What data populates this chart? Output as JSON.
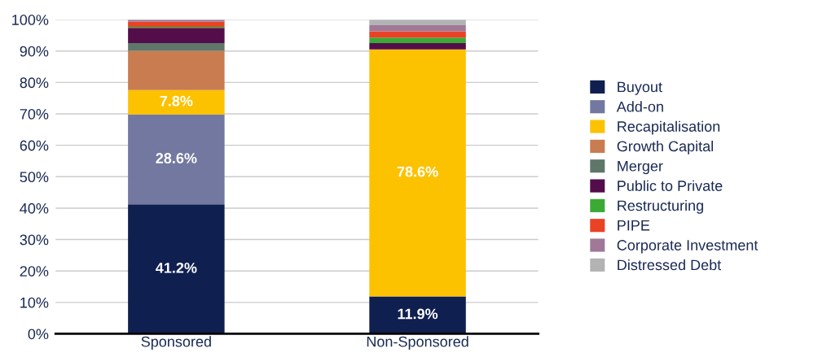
{
  "chart_data": {
    "type": "bar",
    "stacked": true,
    "categories": [
      "Sponsored",
      "Non-Sponsored"
    ],
    "series": [
      {
        "name": "Buyout",
        "color": "#0f1f4f",
        "values": [
          41.2,
          11.9
        ],
        "value_labels": [
          "41.2%",
          "11.9%"
        ]
      },
      {
        "name": "Add-on",
        "color": "#72789f",
        "values": [
          28.6,
          0
        ],
        "value_labels": [
          "28.6%",
          null
        ]
      },
      {
        "name": "Recapitalisation",
        "color": "#fcc200",
        "values": [
          7.8,
          78.6
        ],
        "value_labels": [
          "7.8%",
          "78.6%"
        ]
      },
      {
        "name": "Growth Capital",
        "color": "#c97c50",
        "values": [
          12.5,
          0
        ]
      },
      {
        "name": "Merger",
        "color": "#5f776b",
        "values": [
          2.4,
          0
        ]
      },
      {
        "name": "Public to Private",
        "color": "#540d4b",
        "values": [
          4.9,
          2.0
        ]
      },
      {
        "name": "Restructuring",
        "color": "#3aaa35",
        "values": [
          0.3,
          1.8
        ]
      },
      {
        "name": "PIPE",
        "color": "#e94225",
        "values": [
          1.6,
          2.0
        ]
      },
      {
        "name": "Corporate Investment",
        "color": "#a07898",
        "values": [
          0.7,
          1.9
        ]
      },
      {
        "name": "Distressed Debt",
        "color": "#b3b3b3",
        "values": [
          0,
          1.8
        ]
      }
    ],
    "ylim": [
      0,
      100
    ],
    "yticks": [
      {
        "value": 0,
        "label": "0%"
      },
      {
        "value": 10,
        "label": "10%"
      },
      {
        "value": 20,
        "label": "20%"
      },
      {
        "value": 30,
        "label": "30%"
      },
      {
        "value": 40,
        "label": "40%"
      },
      {
        "value": 50,
        "label": "50%"
      },
      {
        "value": 60,
        "label": "60%"
      },
      {
        "value": 70,
        "label": "70%"
      },
      {
        "value": 80,
        "label": "80%"
      },
      {
        "value": 90,
        "label": "90%"
      },
      {
        "value": 100,
        "label": "100%"
      }
    ],
    "grid": "y",
    "legend": "right"
  }
}
